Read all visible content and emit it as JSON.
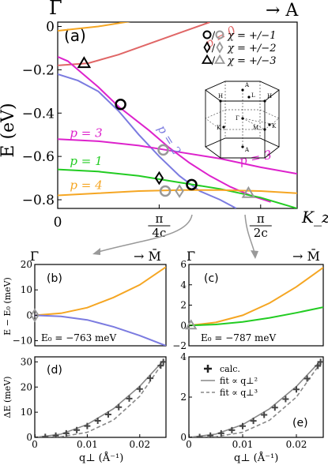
{
  "chart_data": [
    {
      "panel": "(a)",
      "type": "line",
      "top_left_label": "Γ",
      "top_right_label": "→ A",
      "ylabel": "E (eV)",
      "xlabel": "K_z",
      "x_ticks": [
        "0",
        "π/4c",
        "π/2c"
      ],
      "y_ticks": [
        "0",
        "−0.2",
        "−0.4",
        "−0.6",
        "−0.8"
      ],
      "xlim": [
        0,
        1.18
      ],
      "ylim": [
        -0.84,
        0.02
      ],
      "x_units": "π/(2c)",
      "band_labels": [
        {
          "text": "p = 0",
          "color": "#e06666"
        },
        {
          "text": "p = 2",
          "color": "#7b7be0"
        },
        {
          "text": "p = 3",
          "color": "#dd22cc"
        },
        {
          "text": "p = 3",
          "color": "#dd22cc"
        },
        {
          "text": "p = 1",
          "color": "#22cc22"
        },
        {
          "text": "p = 4",
          "color": "#f5a623"
        }
      ],
      "legend": [
        {
          "symbols": "○/○",
          "label": "χ = +/−1"
        },
        {
          "symbols": "◇/◇",
          "label": "χ = +/−2"
        },
        {
          "symbols": "△/△",
          "label": "χ = +/−3"
        }
      ],
      "series": [
        {
          "color": "#f5a623",
          "points": [
            [
              0,
              -0.02
            ],
            [
              0.2,
              0.0
            ],
            [
              0.4,
              0.03
            ]
          ]
        },
        {
          "color": "#e06666",
          "points": [
            [
              0,
              -0.18
            ],
            [
              0.15,
              -0.17
            ],
            [
              0.3,
              -0.13
            ],
            [
              0.45,
              -0.08
            ],
            [
              0.6,
              -0.03
            ],
            [
              0.75,
              0.02
            ]
          ]
        },
        {
          "color": "#dd22cc",
          "points": [
            [
              0,
              -0.14
            ],
            [
              0.05,
              -0.16
            ],
            [
              0.1,
              -0.2
            ],
            [
              0.2,
              -0.28
            ],
            [
              0.3,
              -0.37
            ],
            [
              0.45,
              -0.48
            ],
            [
              0.55,
              -0.56
            ],
            [
              0.65,
              -0.63
            ],
            [
              0.75,
              -0.69
            ],
            [
              0.85,
              -0.74
            ],
            [
              0.95,
              -0.78
            ],
            [
              1.05,
              -0.81
            ]
          ]
        },
        {
          "color": "#7b7be0",
          "points": [
            [
              0,
              -0.22
            ],
            [
              0.1,
              -0.25
            ],
            [
              0.2,
              -0.3
            ],
            [
              0.3,
              -0.39
            ],
            [
              0.4,
              -0.5
            ],
            [
              0.5,
              -0.6
            ],
            [
              0.6,
              -0.69
            ],
            [
              0.7,
              -0.76
            ],
            [
              0.8,
              -0.8
            ],
            [
              0.88,
              -0.84
            ]
          ]
        },
        {
          "color": "#dd22cc",
          "points": [
            [
              0,
              -0.52
            ],
            [
              0.2,
              -0.53
            ],
            [
              0.4,
              -0.55
            ],
            [
              0.6,
              -0.58
            ],
            [
              0.8,
              -0.61
            ],
            [
              1.0,
              -0.65
            ],
            [
              1.18,
              -0.68
            ]
          ]
        },
        {
          "color": "#22cc22",
          "points": [
            [
              0,
              -0.66
            ],
            [
              0.2,
              -0.67
            ],
            [
              0.4,
              -0.69
            ],
            [
              0.6,
              -0.72
            ],
            [
              0.8,
              -0.75
            ],
            [
              1.0,
              -0.79
            ],
            [
              1.18,
              -0.84
            ]
          ]
        },
        {
          "color": "#f5a623",
          "points": [
            [
              0,
              -0.78
            ],
            [
              0.2,
              -0.77
            ],
            [
              0.4,
              -0.76
            ],
            [
              0.6,
              -0.755
            ],
            [
              0.8,
              -0.755
            ],
            [
              1.0,
              -0.76
            ],
            [
              1.18,
              -0.77
            ]
          ]
        }
      ],
      "markers": [
        {
          "shape": "triangle",
          "filled_color": "#000",
          "x": 0.13,
          "y": -0.17
        },
        {
          "shape": "circle",
          "filled_color": "#000",
          "x": 0.31,
          "y": -0.36
        },
        {
          "shape": "circle",
          "filled_color": "#999",
          "x": 0.52,
          "y": -0.57
        },
        {
          "shape": "diamond",
          "filled_color": "#000",
          "x": 0.5,
          "y": -0.7
        },
        {
          "shape": "circle",
          "filled_color": "#000",
          "x": 0.66,
          "y": -0.73
        },
        {
          "shape": "circle",
          "filled_color": "#999",
          "x": 0.53,
          "y": -0.76
        },
        {
          "shape": "diamond",
          "filled_color": "#999",
          "x": 0.6,
          "y": -0.76
        },
        {
          "shape": "triangle",
          "filled_color": "#999",
          "x": 0.94,
          "y": -0.77
        }
      ],
      "inset_labels": [
        "A",
        "H",
        "L",
        "H",
        "Γ",
        "K",
        "K",
        "M",
        "A"
      ]
    },
    {
      "panel": "(b)",
      "type": "line",
      "top_left_label": "Γ̄",
      "top_right_label": "→ M̄",
      "ylabel": "E − E₀ (meV)",
      "y_ticks": [
        "20",
        "10",
        "0",
        "−10"
      ],
      "ylim": [
        -12,
        20
      ],
      "annotation": "E₀ = −763 meV",
      "series": [
        {
          "color": "#f5a623",
          "points": [
            [
              0,
              0
            ],
            [
              0.005,
              0.8
            ],
            [
              0.01,
              3
            ],
            [
              0.015,
              7
            ],
            [
              0.02,
              12
            ],
            [
              0.025,
              19
            ]
          ]
        },
        {
          "color": "#7b7be0",
          "points": [
            [
              0,
              0
            ],
            [
              0.005,
              -0.4
            ],
            [
              0.01,
              -1.8
            ],
            [
              0.015,
              -4.5
            ],
            [
              0.02,
              -8
            ],
            [
              0.025,
              -12
            ]
          ]
        }
      ]
    },
    {
      "panel": "(c)",
      "type": "line",
      "top_left_label": "Γ̄",
      "top_right_label": "→ M̄",
      "y_ticks": [
        "6",
        "4",
        "2",
        "0",
        "−2"
      ],
      "ylim": [
        -2,
        6
      ],
      "annotation": "E₀ = −787 meV",
      "series": [
        {
          "color": "#f5a623",
          "points": [
            [
              0,
              0
            ],
            [
              0.005,
              0.3
            ],
            [
              0.01,
              1.0
            ],
            [
              0.015,
              2.2
            ],
            [
              0.02,
              3.8
            ],
            [
              0.025,
              5.7
            ]
          ]
        },
        {
          "color": "#22cc22",
          "points": [
            [
              0,
              0
            ],
            [
              0.005,
              0.1
            ],
            [
              0.01,
              0.35
            ],
            [
              0.015,
              0.75
            ],
            [
              0.02,
              1.25
            ],
            [
              0.025,
              1.8
            ]
          ]
        }
      ]
    },
    {
      "panel": "(d)",
      "type": "scatter",
      "ylabel": "ΔE (meV)",
      "xlabel": "q⊥ (Å⁻¹)",
      "x_ticks": [
        "0",
        "0.01",
        "0.02"
      ],
      "y_ticks": [
        "0",
        "10",
        "20",
        "30"
      ],
      "xlim": [
        0,
        0.025
      ],
      "ylim": [
        0,
        32
      ],
      "calc_points": [
        [
          0.0,
          0
        ],
        [
          0.002,
          0.2
        ],
        [
          0.004,
          0.7
        ],
        [
          0.006,
          1.6
        ],
        [
          0.008,
          2.9
        ],
        [
          0.01,
          4.5
        ],
        [
          0.012,
          6.6
        ],
        [
          0.014,
          9.1
        ],
        [
          0.016,
          12.0
        ],
        [
          0.018,
          15.4
        ],
        [
          0.02,
          19.2
        ],
        [
          0.022,
          23.5
        ],
        [
          0.024,
          28.5
        ],
        [
          0.0245,
          30.0
        ]
      ],
      "fit_q2": [
        [
          0,
          0
        ],
        [
          0.005,
          1.3
        ],
        [
          0.01,
          5.1
        ],
        [
          0.015,
          11.4
        ],
        [
          0.02,
          20.3
        ],
        [
          0.0245,
          30.5
        ]
      ],
      "fit_q3": [
        [
          0,
          0
        ],
        [
          0.005,
          0.25
        ],
        [
          0.01,
          2.0
        ],
        [
          0.015,
          6.9
        ],
        [
          0.02,
          16.3
        ],
        [
          0.0245,
          30.0
        ]
      ]
    },
    {
      "panel": "(e)",
      "type": "scatter",
      "xlabel": "q⊥ (Å⁻¹)",
      "x_ticks": [
        "0",
        "0.01",
        "0.02"
      ],
      "y_ticks": [
        "0",
        "2",
        "4"
      ],
      "xlim": [
        0,
        0.025
      ],
      "ylim": [
        0,
        4
      ],
      "calc_points": [
        [
          0.0,
          0
        ],
        [
          0.002,
          0.02
        ],
        [
          0.004,
          0.09
        ],
        [
          0.006,
          0.2
        ],
        [
          0.008,
          0.36
        ],
        [
          0.01,
          0.56
        ],
        [
          0.012,
          0.82
        ],
        [
          0.014,
          1.12
        ],
        [
          0.016,
          1.48
        ],
        [
          0.018,
          1.9
        ],
        [
          0.02,
          2.38
        ],
        [
          0.022,
          2.92
        ],
        [
          0.024,
          3.55
        ],
        [
          0.0245,
          3.75
        ]
      ],
      "fit_q2": [
        [
          0,
          0
        ],
        [
          0.005,
          0.16
        ],
        [
          0.01,
          0.63
        ],
        [
          0.015,
          1.42
        ],
        [
          0.02,
          2.53
        ],
        [
          0.0245,
          3.8
        ]
      ],
      "fit_q3": [
        [
          0,
          0
        ],
        [
          0.005,
          0.03
        ],
        [
          0.01,
          0.25
        ],
        [
          0.015,
          0.85
        ],
        [
          0.02,
          2.0
        ],
        [
          0.0245,
          3.7
        ]
      ],
      "legend": [
        {
          "symbol": "+",
          "label": "calc."
        },
        {
          "symbol": "solid",
          "label": "fit ∝ q⊥²"
        },
        {
          "symbol": "dashed",
          "label": "fit ∝ q⊥³"
        }
      ]
    }
  ],
  "colors": {
    "axes": "#000000",
    "orange": "#f5a623",
    "red": "#e06666",
    "magenta": "#dd22cc",
    "blue": "#7b7be0",
    "green": "#22cc22",
    "grey": "#999999",
    "fit": "#888888"
  }
}
